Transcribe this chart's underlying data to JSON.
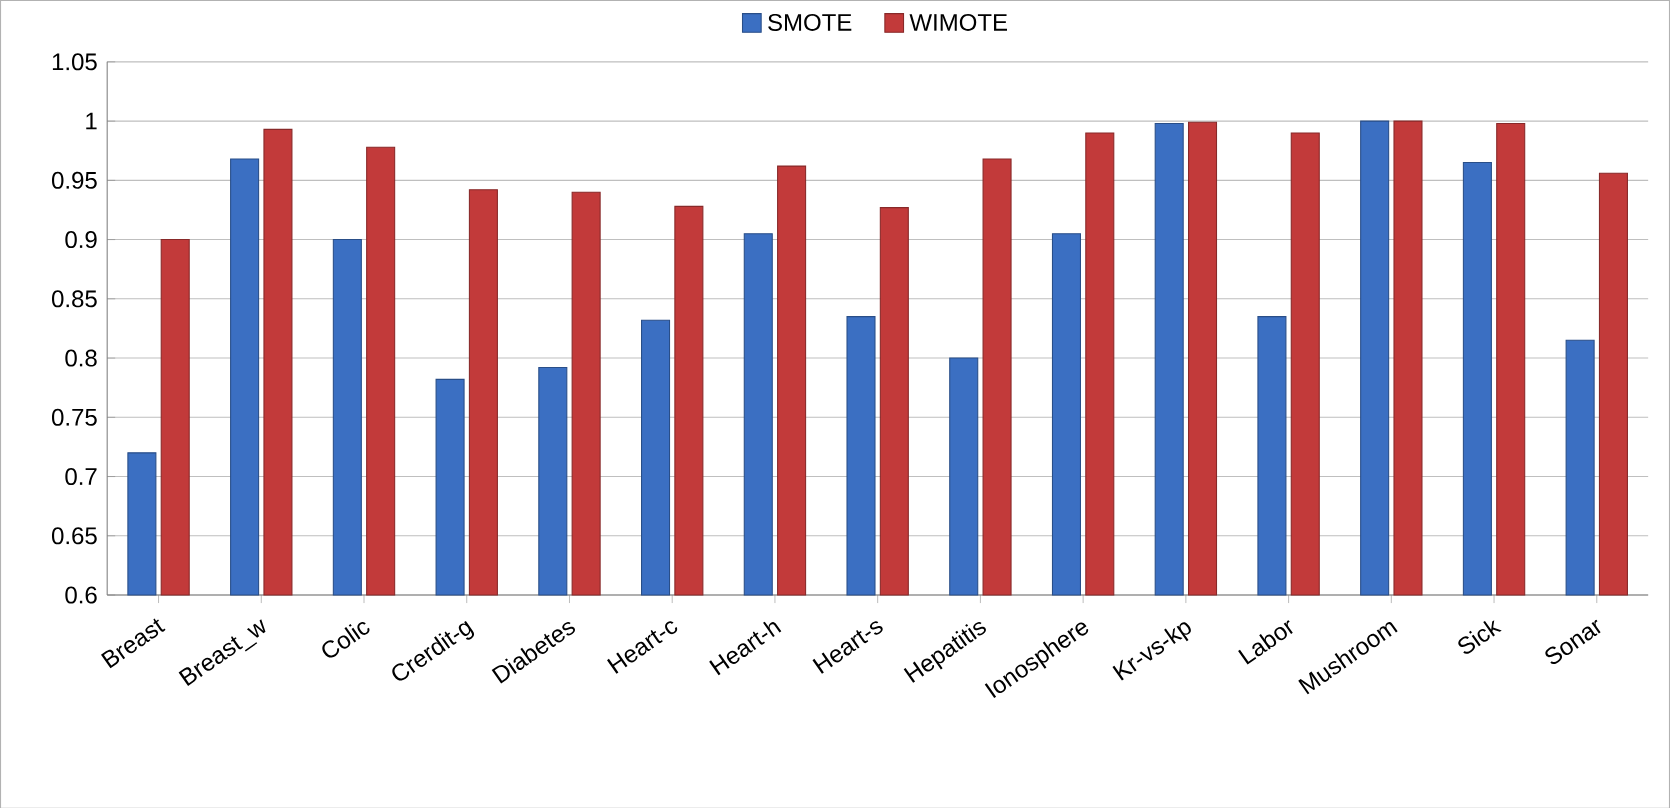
{
  "chart_data": {
    "type": "bar",
    "categories": [
      "Breast",
      "Breast_w",
      "Colic",
      "Crerdit-g",
      "Diabetes",
      "Heart-c",
      "Heart-h",
      "Heart-s",
      "Hepatitis",
      "Ionosphere",
      "Kr-vs-kp",
      "Labor",
      "Mushroom",
      "Sick",
      "Sonar"
    ],
    "series": [
      {
        "name": "SMOTE",
        "color": "#3b6fc2",
        "values": [
          0.72,
          0.968,
          0.9,
          0.782,
          0.792,
          0.832,
          0.905,
          0.835,
          0.8,
          0.905,
          0.998,
          0.835,
          1.0,
          0.965,
          0.815
        ]
      },
      {
        "name": "WIMOTE",
        "color": "#c23a3a",
        "values": [
          0.9,
          0.993,
          0.978,
          0.942,
          0.94,
          0.928,
          0.962,
          0.927,
          0.968,
          0.99,
          0.999,
          0.99,
          1.0,
          0.998,
          0.956
        ]
      }
    ],
    "ylim": [
      0.6,
      1.05
    ],
    "yticks": [
      0.6,
      0.65,
      0.7,
      0.75,
      0.8,
      0.85,
      0.9,
      0.95,
      1,
      1.05
    ],
    "grid": "y",
    "legend": "top"
  }
}
